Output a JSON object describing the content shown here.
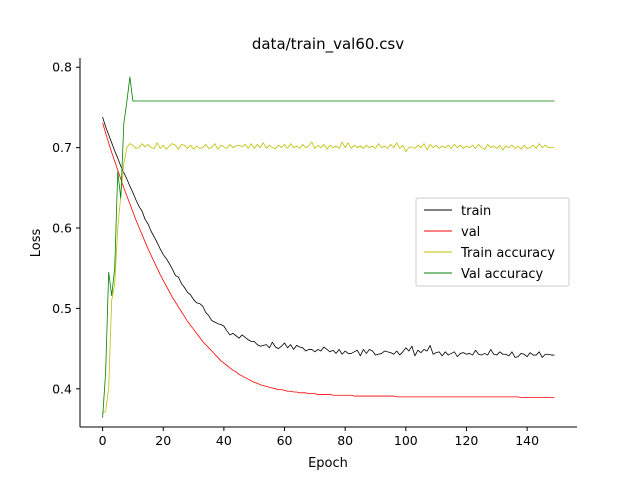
{
  "chart_data": {
    "type": "line",
    "title": "data/train_val60.csv",
    "xlabel": "Epoch",
    "ylabel": "Loss",
    "xlim": [
      -7.45,
      156.45
    ],
    "ylim": [
      0.3525,
      0.8115
    ],
    "xticks": [
      0,
      20,
      40,
      60,
      80,
      100,
      120,
      140
    ],
    "yticks": [
      0.4,
      0.5,
      0.6,
      0.7,
      0.8
    ],
    "xtick_labels": [
      "0",
      "20",
      "40",
      "60",
      "80",
      "100",
      "120",
      "140"
    ],
    "ytick_labels": [
      "0.4",
      "0.5",
      "0.6",
      "0.7",
      "0.8"
    ],
    "grid": false,
    "legend_position": "center-right",
    "series": [
      {
        "name": "train",
        "color": "#000000",
        "x": [
          0,
          1,
          2,
          3,
          4,
          5,
          6,
          7,
          8,
          9,
          10,
          11,
          12,
          13,
          14,
          15,
          16,
          17,
          18,
          19,
          20,
          21,
          22,
          23,
          24,
          25,
          26,
          27,
          28,
          29,
          30,
          31,
          32,
          33,
          34,
          35,
          36,
          37,
          38,
          39,
          40,
          41,
          42,
          43,
          44,
          45,
          46,
          47,
          48,
          49,
          50,
          51,
          52,
          53,
          54,
          55,
          56,
          57,
          58,
          59,
          60,
          61,
          62,
          63,
          64,
          65,
          66,
          67,
          68,
          69,
          70,
          71,
          72,
          73,
          74,
          75,
          76,
          77,
          78,
          79,
          80,
          81,
          82,
          83,
          84,
          85,
          86,
          87,
          88,
          89,
          90,
          91,
          92,
          93,
          94,
          95,
          96,
          97,
          98,
          99,
          100,
          101,
          102,
          103,
          104,
          105,
          106,
          107,
          108,
          109,
          110,
          111,
          112,
          113,
          114,
          115,
          116,
          117,
          118,
          119,
          120,
          121,
          122,
          123,
          124,
          125,
          126,
          127,
          128,
          129,
          130,
          131,
          132,
          133,
          134,
          135,
          136,
          137,
          138,
          139,
          140,
          141,
          142,
          143,
          144,
          145,
          146,
          147,
          148,
          149
        ],
        "y": [
          0.738,
          0.726,
          0.716,
          0.706,
          0.696,
          0.687,
          0.677,
          0.669,
          0.661,
          0.652,
          0.644,
          0.635,
          0.627,
          0.621,
          0.611,
          0.605,
          0.596,
          0.589,
          0.582,
          0.574,
          0.567,
          0.562,
          0.556,
          0.549,
          0.541,
          0.539,
          0.531,
          0.526,
          0.52,
          0.517,
          0.511,
          0.507,
          0.506,
          0.503,
          0.495,
          0.491,
          0.485,
          0.483,
          0.481,
          0.48,
          0.478,
          0.472,
          0.467,
          0.469,
          0.466,
          0.463,
          0.467,
          0.464,
          0.461,
          0.459,
          0.459,
          0.455,
          0.453,
          0.454,
          0.455,
          0.451,
          0.458,
          0.452,
          0.45,
          0.453,
          0.457,
          0.451,
          0.455,
          0.449,
          0.454,
          0.452,
          0.451,
          0.447,
          0.449,
          0.449,
          0.446,
          0.449,
          0.447,
          0.452,
          0.449,
          0.446,
          0.448,
          0.444,
          0.449,
          0.443,
          0.447,
          0.444,
          0.444,
          0.446,
          0.448,
          0.441,
          0.449,
          0.444,
          0.449,
          0.447,
          0.442,
          0.443,
          0.444,
          0.447,
          0.446,
          0.445,
          0.443,
          0.447,
          0.442,
          0.446,
          0.451,
          0.447,
          0.453,
          0.441,
          0.448,
          0.445,
          0.449,
          0.447,
          0.454,
          0.443,
          0.445,
          0.446,
          0.441,
          0.446,
          0.442,
          0.444,
          0.446,
          0.44,
          0.444,
          0.445,
          0.443,
          0.444,
          0.442,
          0.448,
          0.443,
          0.442,
          0.444,
          0.442,
          0.449,
          0.443,
          0.442,
          0.446,
          0.443,
          0.443,
          0.441,
          0.446,
          0.439,
          0.44,
          0.444,
          0.443,
          0.44,
          0.445,
          0.442,
          0.442,
          0.446,
          0.439,
          0.443,
          0.443,
          0.442,
          0.442
        ]
      },
      {
        "name": "val",
        "color": "#ff0000",
        "x": [
          0,
          1,
          2,
          3,
          4,
          5,
          6,
          7,
          8,
          9,
          10,
          11,
          12,
          13,
          14,
          15,
          16,
          17,
          18,
          19,
          20,
          21,
          22,
          23,
          24,
          25,
          26,
          27,
          28,
          29,
          30,
          31,
          32,
          33,
          34,
          35,
          36,
          37,
          38,
          39,
          40,
          41,
          42,
          43,
          44,
          45,
          46,
          47,
          48,
          49,
          50,
          51,
          52,
          53,
          54,
          55,
          56,
          57,
          58,
          59,
          60,
          61,
          62,
          63,
          64,
          65,
          66,
          67,
          68,
          69,
          70,
          71,
          72,
          73,
          74,
          75,
          76,
          77,
          78,
          79,
          80,
          81,
          82,
          83,
          84,
          85,
          86,
          87,
          88,
          89,
          90,
          91,
          92,
          93,
          94,
          95,
          96,
          97,
          98,
          99,
          100,
          101,
          102,
          103,
          104,
          105,
          106,
          107,
          108,
          109,
          110,
          111,
          112,
          113,
          114,
          115,
          116,
          117,
          118,
          119,
          120,
          121,
          122,
          123,
          124,
          125,
          126,
          127,
          128,
          129,
          130,
          131,
          132,
          133,
          134,
          135,
          136,
          137,
          138,
          139,
          140,
          141,
          142,
          143,
          144,
          145,
          146,
          147,
          148,
          149
        ],
        "y": [
          0.731,
          0.718,
          0.706,
          0.694,
          0.683,
          0.672,
          0.661,
          0.65,
          0.64,
          0.63,
          0.62,
          0.61,
          0.601,
          0.592,
          0.583,
          0.574,
          0.566,
          0.558,
          0.55,
          0.542,
          0.535,
          0.528,
          0.521,
          0.514,
          0.508,
          0.502,
          0.496,
          0.49,
          0.484,
          0.479,
          0.474,
          0.469,
          0.464,
          0.459,
          0.455,
          0.451,
          0.447,
          0.443,
          0.439,
          0.435,
          0.432,
          0.429,
          0.426,
          0.423,
          0.421,
          0.418,
          0.416,
          0.414,
          0.412,
          0.41,
          0.408,
          0.407,
          0.405,
          0.404,
          0.403,
          0.402,
          0.401,
          0.4,
          0.399,
          0.399,
          0.398,
          0.397,
          0.397,
          0.396,
          0.396,
          0.395,
          0.395,
          0.395,
          0.394,
          0.394,
          0.394,
          0.393,
          0.393,
          0.393,
          0.393,
          0.393,
          0.392,
          0.392,
          0.392,
          0.392,
          0.392,
          0.392,
          0.392,
          0.391,
          0.391,
          0.391,
          0.391,
          0.391,
          0.391,
          0.391,
          0.391,
          0.391,
          0.391,
          0.391,
          0.391,
          0.391,
          0.391,
          0.39,
          0.39,
          0.39,
          0.39,
          0.39,
          0.39,
          0.39,
          0.39,
          0.39,
          0.39,
          0.39,
          0.39,
          0.39,
          0.39,
          0.39,
          0.39,
          0.39,
          0.39,
          0.39,
          0.39,
          0.39,
          0.39,
          0.39,
          0.39,
          0.39,
          0.39,
          0.39,
          0.39,
          0.39,
          0.39,
          0.39,
          0.39,
          0.39,
          0.39,
          0.39,
          0.39,
          0.39,
          0.39,
          0.39,
          0.39,
          0.39,
          0.389,
          0.389,
          0.389,
          0.389,
          0.389,
          0.389,
          0.389,
          0.389,
          0.389,
          0.389,
          0.389,
          0.389
        ]
      },
      {
        "name": "Train accuracy",
        "color": "#bfbf00",
        "x": [
          0,
          1,
          2,
          3,
          4,
          5,
          6,
          7,
          8,
          9,
          10,
          11,
          12,
          13,
          14,
          15,
          16,
          17,
          18,
          19,
          20,
          21,
          22,
          23,
          24,
          25,
          26,
          27,
          28,
          29,
          30,
          31,
          32,
          33,
          34,
          35,
          36,
          37,
          38,
          39,
          40,
          41,
          42,
          43,
          44,
          45,
          46,
          47,
          48,
          49,
          50,
          51,
          52,
          53,
          54,
          55,
          56,
          57,
          58,
          59,
          60,
          61,
          62,
          63,
          64,
          65,
          66,
          67,
          68,
          69,
          70,
          71,
          72,
          73,
          74,
          75,
          76,
          77,
          78,
          79,
          80,
          81,
          82,
          83,
          84,
          85,
          86,
          87,
          88,
          89,
          90,
          91,
          92,
          93,
          94,
          95,
          96,
          97,
          98,
          99,
          100,
          101,
          102,
          103,
          104,
          105,
          106,
          107,
          108,
          109,
          110,
          111,
          112,
          113,
          114,
          115,
          116,
          117,
          118,
          119,
          120,
          121,
          122,
          123,
          124,
          125,
          126,
          127,
          128,
          129,
          130,
          131,
          132,
          133,
          134,
          135,
          136,
          137,
          138,
          139,
          140,
          141,
          142,
          143,
          144,
          145,
          146,
          147,
          148,
          149
        ],
        "y": [
          0.37,
          0.372,
          0.4,
          0.51,
          0.53,
          0.6,
          0.64,
          0.68,
          0.7,
          0.705,
          0.703,
          0.699,
          0.7,
          0.705,
          0.701,
          0.704,
          0.7,
          0.699,
          0.706,
          0.699,
          0.703,
          0.698,
          0.702,
          0.705,
          0.703,
          0.698,
          0.704,
          0.703,
          0.699,
          0.703,
          0.698,
          0.702,
          0.699,
          0.7,
          0.704,
          0.699,
          0.7,
          0.705,
          0.698,
          0.703,
          0.701,
          0.699,
          0.704,
          0.7,
          0.702,
          0.703,
          0.701,
          0.704,
          0.699,
          0.705,
          0.699,
          0.704,
          0.7,
          0.706,
          0.699,
          0.703,
          0.7,
          0.699,
          0.703,
          0.7,
          0.704,
          0.699,
          0.705,
          0.7,
          0.702,
          0.699,
          0.704,
          0.7,
          0.702,
          0.707,
          0.699,
          0.703,
          0.7,
          0.704,
          0.698,
          0.703,
          0.7,
          0.702,
          0.699,
          0.707,
          0.7,
          0.706,
          0.699,
          0.703,
          0.7,
          0.702,
          0.699,
          0.703,
          0.7,
          0.702,
          0.699,
          0.705,
          0.7,
          0.702,
          0.699,
          0.704,
          0.7,
          0.706,
          0.699,
          0.703,
          0.695,
          0.7,
          0.701,
          0.699,
          0.703,
          0.7,
          0.705,
          0.697,
          0.704,
          0.7,
          0.703,
          0.699,
          0.702,
          0.7,
          0.703,
          0.699,
          0.704,
          0.7,
          0.703,
          0.699,
          0.702,
          0.7,
          0.703,
          0.699,
          0.704,
          0.7,
          0.698,
          0.704,
          0.7,
          0.702,
          0.699,
          0.703,
          0.697,
          0.702,
          0.7,
          0.703,
          0.699,
          0.702,
          0.698,
          0.703,
          0.699,
          0.7,
          0.703,
          0.699,
          0.705,
          0.7,
          0.703,
          0.7,
          0.7,
          0.7
        ]
      },
      {
        "name": "Val accuracy",
        "color": "#008000",
        "x": [
          0,
          1,
          2,
          3,
          4,
          5,
          6,
          7,
          8,
          9,
          10,
          11,
          12,
          13,
          14,
          15,
          16,
          17,
          18,
          19,
          20,
          21,
          22,
          23,
          24,
          25,
          26,
          27,
          28,
          29,
          30,
          31,
          32,
          33,
          34,
          35,
          36,
          37,
          38,
          39,
          40,
          41,
          42,
          43,
          44,
          45,
          46,
          47,
          48,
          49,
          50,
          51,
          52,
          53,
          54,
          55,
          56,
          57,
          58,
          59,
          60,
          61,
          62,
          63,
          64,
          65,
          66,
          67,
          68,
          69,
          70,
          71,
          72,
          73,
          74,
          75,
          76,
          77,
          78,
          79,
          80,
          81,
          82,
          83,
          84,
          85,
          86,
          87,
          88,
          89,
          90,
          91,
          92,
          93,
          94,
          95,
          96,
          97,
          98,
          99,
          100,
          101,
          102,
          103,
          104,
          105,
          106,
          107,
          108,
          109,
          110,
          111,
          112,
          113,
          114,
          115,
          116,
          117,
          118,
          119,
          120,
          121,
          122,
          123,
          124,
          125,
          126,
          127,
          128,
          129,
          130,
          131,
          132,
          133,
          134,
          135,
          136,
          137,
          138,
          139,
          140,
          141,
          142,
          143,
          144,
          145,
          146,
          147,
          148,
          149
        ],
        "y": [
          0.364,
          0.42,
          0.545,
          0.516,
          0.55,
          0.67,
          0.637,
          0.73,
          0.757,
          0.788,
          0.758,
          0.758,
          0.758,
          0.758,
          0.758,
          0.758,
          0.758,
          0.758,
          0.758,
          0.758,
          0.758,
          0.758,
          0.758,
          0.758,
          0.758,
          0.758,
          0.758,
          0.758,
          0.758,
          0.758,
          0.758,
          0.758,
          0.758,
          0.758,
          0.758,
          0.758,
          0.758,
          0.758,
          0.758,
          0.758,
          0.758,
          0.758,
          0.758,
          0.758,
          0.758,
          0.758,
          0.758,
          0.758,
          0.758,
          0.758,
          0.758,
          0.758,
          0.758,
          0.758,
          0.758,
          0.758,
          0.758,
          0.758,
          0.758,
          0.758,
          0.758,
          0.758,
          0.758,
          0.758,
          0.758,
          0.758,
          0.758,
          0.758,
          0.758,
          0.758,
          0.758,
          0.758,
          0.758,
          0.758,
          0.758,
          0.758,
          0.758,
          0.758,
          0.758,
          0.758,
          0.758,
          0.758,
          0.758,
          0.758,
          0.758,
          0.758,
          0.758,
          0.758,
          0.758,
          0.758,
          0.758,
          0.758,
          0.758,
          0.758,
          0.758,
          0.758,
          0.758,
          0.758,
          0.758,
          0.758,
          0.758,
          0.758,
          0.758,
          0.758,
          0.758,
          0.758,
          0.758,
          0.758,
          0.758,
          0.758,
          0.758,
          0.758,
          0.758,
          0.758,
          0.758,
          0.758,
          0.758,
          0.758,
          0.758,
          0.758,
          0.758,
          0.758,
          0.758,
          0.758,
          0.758,
          0.758,
          0.758,
          0.758,
          0.758,
          0.758,
          0.758,
          0.758,
          0.758,
          0.758,
          0.758,
          0.758,
          0.758,
          0.758,
          0.758,
          0.758,
          0.758,
          0.758,
          0.758,
          0.758,
          0.758,
          0.758,
          0.758,
          0.758,
          0.758,
          0.758
        ]
      }
    ]
  }
}
